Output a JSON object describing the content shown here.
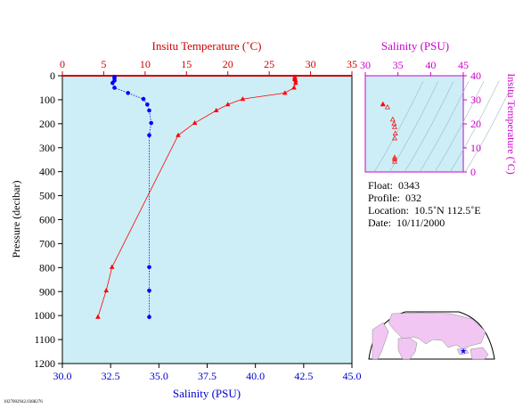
{
  "chart_data": [
    {
      "type": "line",
      "plot": "main-profile",
      "top_axis": {
        "label": "Insitu Temperature (˚C)",
        "range": [
          0,
          35
        ],
        "ticks": [
          0,
          5,
          10,
          15,
          20,
          25,
          30,
          35
        ],
        "color": "#cc0000"
      },
      "bottom_axis": {
        "label": "Salinity (PSU)",
        "range": [
          30,
          45
        ],
        "ticks": [
          "30.0",
          "32.5",
          "35.0",
          "37.5",
          "40.0",
          "42.5",
          "45.0"
        ],
        "color": "#0000cc"
      },
      "left_axis": {
        "label": "Pressure (decibar)",
        "range": [
          1200,
          0
        ],
        "ticks": [
          0,
          100,
          200,
          300,
          400,
          500,
          600,
          700,
          800,
          900,
          1000,
          1100,
          1200
        ]
      },
      "background": "#cdeef6",
      "grid": false,
      "series": [
        {
          "name": "Insitu Temperature (˚C)",
          "color": "#ff0000",
          "marker": "triangle",
          "x": "temperature",
          "points": [
            {
              "t": 28.1,
              "p": 5
            },
            {
              "t": 28.1,
              "p": 10
            },
            {
              "t": 28.1,
              "p": 15
            },
            {
              "t": 28.2,
              "p": 20
            },
            {
              "t": 28.2,
              "p": 30
            },
            {
              "t": 28.0,
              "p": 50
            },
            {
              "t": 26.9,
              "p": 72
            },
            {
              "t": 21.8,
              "p": 97
            },
            {
              "t": 20.0,
              "p": 120
            },
            {
              "t": 18.6,
              "p": 145
            },
            {
              "t": 16.0,
              "p": 197
            },
            {
              "t": 14.0,
              "p": 248
            },
            {
              "t": 6.0,
              "p": 798
            },
            {
              "t": 5.3,
              "p": 896
            },
            {
              "t": 4.3,
              "p": 1006
            }
          ]
        },
        {
          "name": "Salinity (PSU)",
          "color": "#0000ff",
          "marker": "circle",
          "x": "salinity",
          "points": [
            {
              "s": 32.7,
              "p": 5
            },
            {
              "s": 32.7,
              "p": 10
            },
            {
              "s": 32.7,
              "p": 20
            },
            {
              "s": 32.6,
              "p": 30
            },
            {
              "s": 32.7,
              "p": 50
            },
            {
              "s": 33.4,
              "p": 72
            },
            {
              "s": 34.2,
              "p": 97
            },
            {
              "s": 34.4,
              "p": 120
            },
            {
              "s": 34.5,
              "p": 145
            },
            {
              "s": 34.6,
              "p": 197
            },
            {
              "s": 34.5,
              "p": 248
            },
            {
              "s": 34.5,
              "p": 798
            },
            {
              "s": 34.5,
              "p": 896
            },
            {
              "s": 34.5,
              "p": 1006
            }
          ]
        }
      ]
    },
    {
      "type": "scatter",
      "plot": "ts-diagram",
      "top_axis": {
        "label": "Salinity (PSU)",
        "range": [
          30,
          45
        ],
        "ticks": [
          30,
          35,
          40,
          45
        ],
        "color": "#cc00cc"
      },
      "right_axis": {
        "label": "Insitu Temperature (˚C)",
        "range": [
          0,
          40
        ],
        "ticks": [
          0,
          10,
          20,
          30,
          40
        ],
        "color": "#cc00cc"
      },
      "background": "#cdeef6",
      "series": [
        {
          "color": "#ff0000",
          "marker": "triangle",
          "points": [
            {
              "s": 32.7,
              "t": 28.1
            },
            {
              "s": 33.4,
              "t": 26.9
            },
            {
              "s": 34.2,
              "t": 21.8
            },
            {
              "s": 34.4,
              "t": 20.0
            },
            {
              "s": 34.5,
              "t": 18.6
            },
            {
              "s": 34.6,
              "t": 16.0
            },
            {
              "s": 34.5,
              "t": 14.0
            },
            {
              "s": 34.5,
              "t": 6.0
            },
            {
              "s": 34.5,
              "t": 5.3
            },
            {
              "s": 34.5,
              "t": 4.3
            }
          ]
        }
      ]
    }
  ],
  "info": {
    "float_label": "Float:",
    "float_value": "0343",
    "profile_label": "Profile:",
    "profile_value": "032",
    "location_label": "Location:",
    "location_value": "10.5˚N  112.5˚E",
    "date_label": "Date:",
    "date_value": "10/11/2000"
  },
  "map": {
    "marker_symbol": "★",
    "marker_color": "#0000ff",
    "land_color": "#f2c6f2",
    "ocean_color": "#ffffff"
  },
  "footer_id": "1027002942.0388276"
}
